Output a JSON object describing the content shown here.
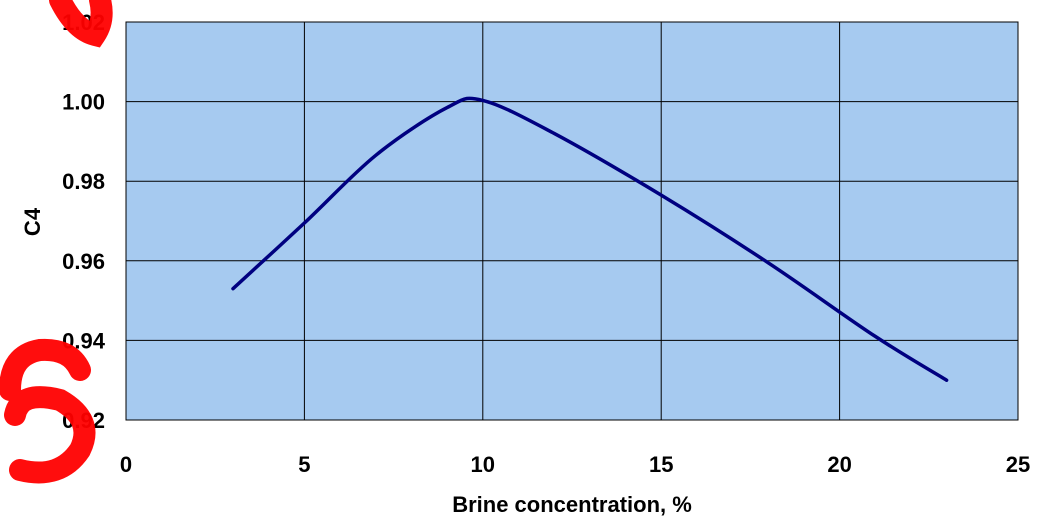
{
  "colors": {
    "plot_background": "#a6caf0",
    "gridline": "#000000",
    "series_line": "#000080",
    "watermark": "#ff0000"
  },
  "chart_data": {
    "type": "line",
    "title": "",
    "xlabel": "Brine concentration, %",
    "ylabel": "C4",
    "xlim": [
      0,
      25
    ],
    "ylim": [
      0.92,
      1.02
    ],
    "x_ticks": [
      0,
      5,
      10,
      15,
      20,
      25
    ],
    "x_tick_labels": [
      "0",
      "5",
      "10",
      "15",
      "20",
      "25"
    ],
    "y_ticks": [
      0.92,
      0.94,
      0.96,
      0.98,
      1.0,
      1.02
    ],
    "y_tick_labels": [
      "0.92",
      "0.94",
      "0.96",
      "0.98",
      "1.00",
      "1.02"
    ],
    "grid": true,
    "legend": "none",
    "series": [
      {
        "x": [
          3,
          5,
          7,
          9,
          10,
          12,
          15,
          18,
          21,
          23
        ],
        "y": [
          0.953,
          0.9695,
          0.9865,
          0.9985,
          1.0003,
          0.992,
          0.9765,
          0.9595,
          0.941,
          0.93
        ]
      }
    ]
  },
  "watermark_text": "su"
}
